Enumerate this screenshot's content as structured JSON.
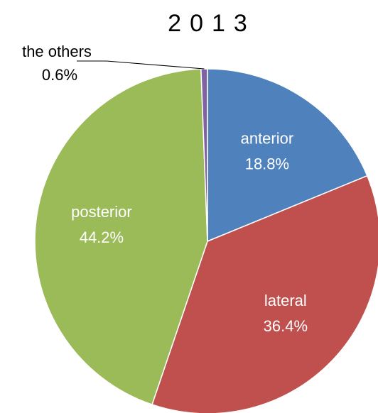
{
  "chart_data": {
    "type": "pie",
    "title": "2013",
    "categories": [
      "anterior",
      "lateral",
      "posterior",
      "the others"
    ],
    "values": [
      18.8,
      36.4,
      44.2,
      0.6
    ],
    "value_labels": [
      "18.8%",
      "36.4%",
      "44.2%",
      "0.6%"
    ],
    "colors": [
      "#4f81bd",
      "#c0504d",
      "#9bbb59",
      "#8064a2"
    ]
  }
}
